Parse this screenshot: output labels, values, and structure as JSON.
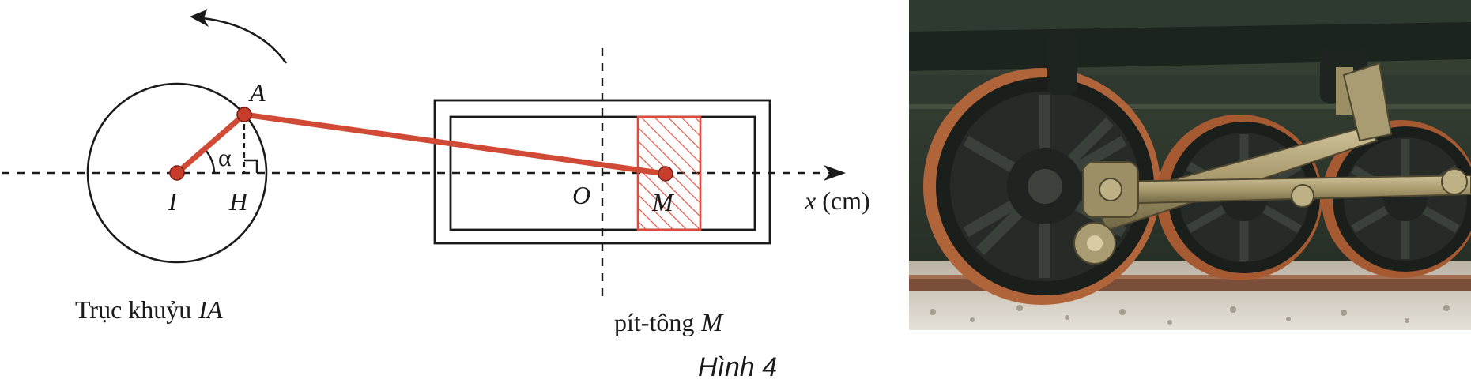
{
  "figure": {
    "caption": "Hình 4",
    "colors": {
      "rod": "#d04a35",
      "joint": "#c83c2c",
      "hatch": "#e04a3a",
      "ink": "#1a1a1a"
    },
    "labels": {
      "point_a": "A",
      "point_i": "I",
      "point_h": "H",
      "point_o": "O",
      "point_m": "M",
      "angle_alpha": "α",
      "axis_x": "x",
      "axis_unit": "(cm)",
      "crank_prefix": "Trục khuỷu",
      "crank_name": "IA",
      "piston_prefix": "pít-tông",
      "piston_name": "M"
    },
    "photo": {
      "subject": "steam-locomotive-wheels-with-connecting-rods"
    }
  }
}
